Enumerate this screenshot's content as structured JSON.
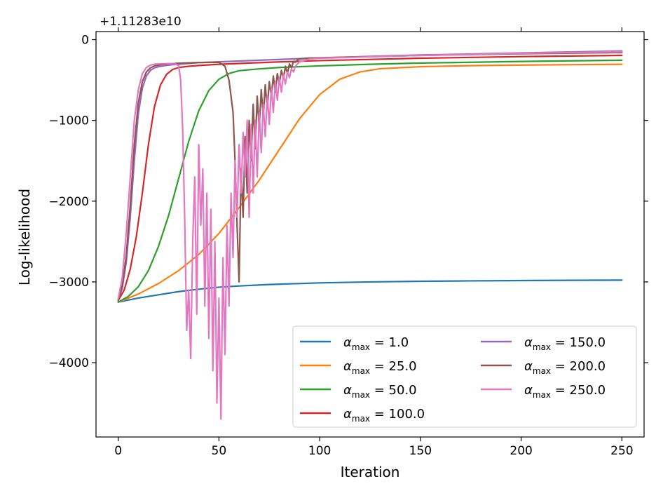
{
  "chart_data": {
    "type": "line",
    "title": "",
    "xlabel": "Iteration",
    "ylabel": "Log-likelihood",
    "y_offset_label": "+1.11283e10",
    "xlim": [
      -11,
      261
    ],
    "ylim": [
      -4920,
      100
    ],
    "xticks": [
      0,
      50,
      100,
      150,
      200,
      250
    ],
    "xtick_labels": [
      "0",
      "50",
      "100",
      "150",
      "200",
      "250"
    ],
    "yticks": [
      0,
      -1000,
      -2000,
      -3000,
      -4000
    ],
    "ytick_labels": [
      "0",
      "−1000",
      "−2000",
      "−3000",
      "−4000"
    ],
    "grid": false,
    "legend_position": "lower-right",
    "legend_columns": 2,
    "legend_symbol": "α",
    "legend_subscript": "max",
    "series": [
      {
        "name": "1.0",
        "color": "#1f77b4",
        "x": [
          0,
          10,
          20,
          30,
          40,
          50,
          60,
          75,
          100,
          125,
          150,
          175,
          200,
          225,
          250
        ],
        "y": [
          -3250,
          -3200,
          -3160,
          -3120,
          -3090,
          -3065,
          -3050,
          -3032,
          -3012,
          -3000,
          -2992,
          -2987,
          -2983,
          -2980,
          -2978
        ]
      },
      {
        "name": "25.0",
        "color": "#ff7f0e",
        "x": [
          0,
          10,
          20,
          30,
          40,
          50,
          60,
          70,
          80,
          90,
          100,
          110,
          120,
          130,
          150,
          175,
          200,
          225,
          250
        ],
        "y": [
          -3250,
          -3150,
          -3020,
          -2860,
          -2660,
          -2400,
          -2080,
          -1740,
          -1360,
          -980,
          -680,
          -490,
          -400,
          -360,
          -335,
          -322,
          -315,
          -310,
          -305
        ]
      },
      {
        "name": "50.0",
        "color": "#2ca02c",
        "x": [
          0,
          5,
          10,
          15,
          20,
          25,
          30,
          35,
          40,
          45,
          50,
          55,
          60,
          70,
          80,
          100,
          125,
          150,
          200,
          250
        ],
        "y": [
          -3250,
          -3180,
          -3060,
          -2860,
          -2560,
          -2180,
          -1720,
          -1260,
          -880,
          -630,
          -490,
          -420,
          -385,
          -362,
          -345,
          -325,
          -305,
          -290,
          -270,
          -255
        ]
      },
      {
        "name": "100.0",
        "color": "#d62728",
        "x": [
          0,
          3,
          6,
          9,
          12,
          15,
          18,
          21,
          24,
          27,
          30,
          35,
          40,
          50,
          75,
          100,
          150,
          200,
          250
        ],
        "y": [
          -3230,
          -3100,
          -2840,
          -2440,
          -1900,
          -1300,
          -830,
          -560,
          -430,
          -370,
          -345,
          -330,
          -320,
          -305,
          -280,
          -260,
          -230,
          -210,
          -195
        ]
      },
      {
        "name": "150.0",
        "color": "#9467bd",
        "x": [
          0,
          2,
          4,
          6,
          8,
          10,
          12,
          14,
          16,
          18,
          20,
          25,
          30,
          40,
          60,
          80,
          100,
          150,
          200,
          250
        ],
        "y": [
          -3230,
          -3080,
          -2760,
          -2200,
          -1500,
          -920,
          -600,
          -450,
          -380,
          -350,
          -335,
          -315,
          -305,
          -285,
          -265,
          -245,
          -225,
          -190,
          -165,
          -140
        ]
      },
      {
        "name": "200.0",
        "color": "#8c564b",
        "x": [
          0,
          2,
          4,
          6,
          8,
          10,
          12,
          14,
          16,
          18,
          20,
          25,
          30,
          40,
          50,
          53,
          55,
          57,
          58,
          59,
          60,
          61,
          62,
          63,
          64,
          65,
          66,
          67,
          68,
          69,
          70,
          71,
          72,
          73,
          74,
          75,
          76,
          77,
          78,
          79,
          80,
          81,
          82,
          83,
          84,
          85,
          86,
          87,
          88,
          89,
          90,
          95,
          100,
          150,
          200,
          250
        ],
        "y": [
          -3230,
          -3050,
          -2680,
          -2050,
          -1300,
          -780,
          -520,
          -400,
          -350,
          -325,
          -315,
          -300,
          -292,
          -283,
          -280,
          -330,
          -500,
          -900,
          -1500,
          -2300,
          -3000,
          -1600,
          -2200,
          -1200,
          -1900,
          -1000,
          -1500,
          -800,
          -1350,
          -700,
          -1100,
          -620,
          -950,
          -560,
          -850,
          -520,
          -700,
          -450,
          -650,
          -420,
          -550,
          -380,
          -480,
          -330,
          -420,
          -300,
          -350,
          -270,
          -280,
          -250,
          -240,
          -228,
          -225,
          -195,
          -175,
          -160
        ]
      },
      {
        "name": "250.0",
        "color": "#e377c2",
        "x": [
          0,
          2,
          4,
          6,
          8,
          10,
          12,
          14,
          16,
          18,
          20,
          25,
          28,
          30,
          31,
          32,
          33,
          34,
          35,
          36,
          37,
          38,
          39,
          40,
          41,
          42,
          43,
          44,
          45,
          46,
          47,
          48,
          49,
          50,
          51,
          52,
          53,
          54,
          55,
          56,
          57,
          58,
          59,
          60,
          61,
          62,
          63,
          64,
          65,
          66,
          67,
          68,
          69,
          70,
          71,
          72,
          73,
          74,
          75,
          76,
          77,
          78,
          79,
          80,
          81,
          82,
          83,
          84,
          85,
          86,
          87,
          88,
          89,
          90,
          95,
          100,
          150,
          200,
          250
        ],
        "y": [
          -3210,
          -2950,
          -2400,
          -1700,
          -1000,
          -620,
          -420,
          -345,
          -315,
          -305,
          -300,
          -296,
          -298,
          -320,
          -500,
          -1100,
          -2200,
          -3600,
          -3100,
          -3950,
          -2500,
          -1700,
          -3400,
          -1300,
          -2300,
          -1600,
          -3300,
          -1900,
          -3700,
          -2100,
          -4100,
          -2500,
          -4500,
          -3200,
          -4700,
          -2700,
          -3900,
          -2300,
          -3300,
          -1900,
          -2700,
          -1500,
          -2200,
          -1300,
          -1900,
          -1150,
          -1700,
          -1000,
          -2200,
          -1050,
          -1900,
          -1000,
          -1700,
          -900,
          -1400,
          -800,
          -1200,
          -700,
          -1050,
          -600,
          -900,
          -520,
          -750,
          -470,
          -650,
          -430,
          -550,
          -400,
          -470,
          -360,
          -400,
          -330,
          -300,
          -275,
          -240,
          -230,
          -195,
          -170,
          -150
        ]
      }
    ]
  }
}
